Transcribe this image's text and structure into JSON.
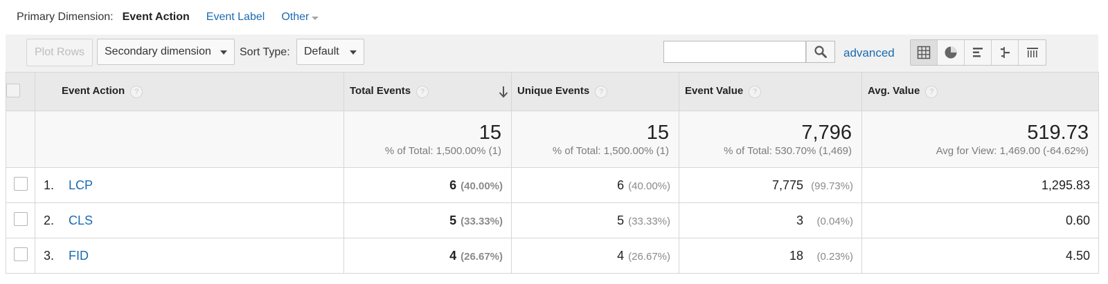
{
  "primary": {
    "label": "Primary Dimension:",
    "active": "Event Action",
    "link": "Event Label",
    "other": "Other"
  },
  "toolbar": {
    "plot_rows": "Plot Rows",
    "secondary": "Secondary dimension",
    "sort_label": "Sort Type:",
    "sort_value": "Default",
    "search_value": "",
    "advanced": "advanced",
    "views": [
      "table-icon",
      "pie-icon",
      "bar-icon",
      "comparison-icon",
      "pivot-icon"
    ]
  },
  "table": {
    "headers": {
      "action": "Event Action",
      "total": "Total Events",
      "unique": "Unique Events",
      "value": "Event Value",
      "avg": "Avg. Value",
      "help": "?"
    },
    "totals": {
      "total": {
        "value": "15",
        "sub": "% of Total: 1,500.00% (1)"
      },
      "unique": {
        "value": "15",
        "sub": "% of Total: 1,500.00% (1)"
      },
      "value": {
        "value": "7,796",
        "sub": "% of Total: 530.70% (1,469)"
      },
      "avg": {
        "value": "519.73",
        "sub": "Avg for View: 1,469.00 (-64.62%)"
      }
    },
    "rows": [
      {
        "index": "1.",
        "name": "LCP",
        "total": "6",
        "total_pct": "(40.00%)",
        "unique": "6",
        "unique_pct": "(40.00%)",
        "value": "7,775",
        "value_pct": "(99.73%)",
        "avg": "1,295.83"
      },
      {
        "index": "2.",
        "name": "CLS",
        "total": "5",
        "total_pct": "(33.33%)",
        "unique": "5",
        "unique_pct": "(33.33%)",
        "value": "3",
        "value_pct": "(0.04%)",
        "avg": "0.60"
      },
      {
        "index": "3.",
        "name": "FID",
        "total": "4",
        "total_pct": "(26.67%)",
        "unique": "4",
        "unique_pct": "(26.67%)",
        "value": "18",
        "value_pct": "(0.23%)",
        "avg": "4.50"
      }
    ]
  },
  "colors": {
    "link": "#1a6bb0",
    "header_bg": "#e9e9e9",
    "toolbar_bg": "#f1f1f1"
  }
}
